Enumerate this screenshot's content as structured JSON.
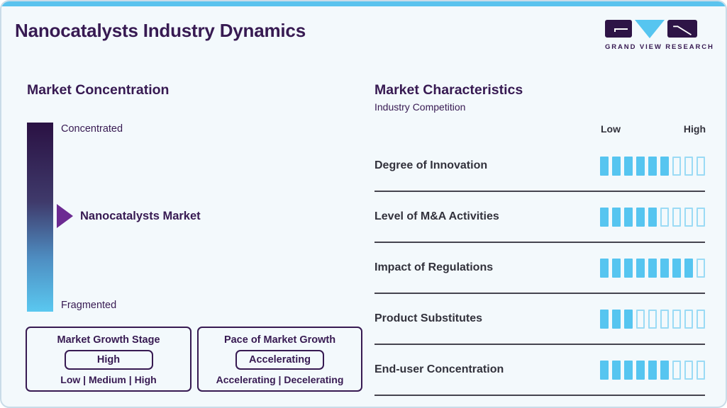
{
  "header": {
    "title": "Nanocatalysts Industry Dynamics",
    "logo_text": "GRAND VIEW RESEARCH"
  },
  "market_concentration": {
    "title": "Market Concentration",
    "top_label": "Concentrated",
    "bottom_label": "Fragmented",
    "pointer_label": "Nanocatalysts Market"
  },
  "growth_stage_box": {
    "title": "Market Growth Stage",
    "value": "High",
    "options": "Low | Medium | High"
  },
  "pace_box": {
    "title": "Pace of Market Growth",
    "value": "Accelerating",
    "options": "Accelerating | Decelerating"
  },
  "market_characteristics": {
    "title": "Market Characteristics",
    "subtitle": "Industry Competition"
  },
  "chart_data": {
    "type": "bar",
    "title": "Industry Competition",
    "categories": [
      "Degree of Innovation",
      "Level of M&A Activities",
      "Impact of Regulations",
      "Product Substitutes",
      "End-user Concentration"
    ],
    "values": [
      6,
      5,
      8,
      3,
      6
    ],
    "scale_max": 9,
    "scale_labels": [
      "Low",
      "High"
    ],
    "legend_position": "none",
    "xlabel": "",
    "ylabel": ""
  },
  "colors": {
    "accent_blue": "#5ac3ee",
    "fill_blue": "#56c5f0",
    "empty_segment_border": "#9bdbf5",
    "heading_purple": "#371a52",
    "arrow_purple": "#6c2b92",
    "row_text": "#32323c",
    "divider": "#45444e",
    "gradient_top": "#2a1143",
    "gradient_bottom": "#5ac8f0",
    "card_background": "#f3f9fc"
  }
}
